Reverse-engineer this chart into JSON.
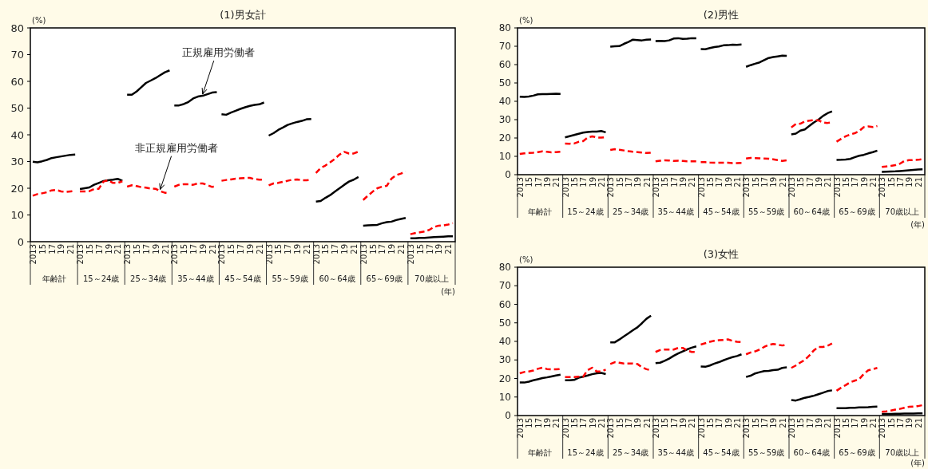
{
  "chart_data": [
    {
      "type": "line",
      "title": "(1)男女計",
      "ylabel": "(%)",
      "xlabel": "(年)",
      "ylim": [
        0,
        80
      ],
      "yticks": [
        0,
        10,
        20,
        30,
        40,
        50,
        60,
        70,
        80
      ],
      "annotations": [
        "年齢計",
        "15～24歳",
        "25～34歳",
        "35～44歳",
        "45～54歳",
        "55～59歳",
        "60～64歳",
        "65～69歳",
        "70歳以上"
      ],
      "categories": [
        "2013",
        null,
        "15",
        null,
        "17",
        null,
        "19",
        null,
        "21",
        null,
        "2013",
        null,
        "15",
        null,
        "17",
        null,
        "19",
        null,
        "21",
        null,
        "2013",
        null,
        "15",
        null,
        "17",
        null,
        "19",
        null,
        "21",
        null,
        "2013",
        null,
        "15",
        null,
        "17",
        null,
        "19",
        null,
        "21",
        null,
        "2013",
        null,
        "15",
        null,
        "17",
        null,
        "19",
        null,
        "21",
        null,
        "2013",
        null,
        "15",
        null,
        "17",
        null,
        "19",
        null,
        "21",
        null,
        "2013",
        null,
        "15",
        null,
        "17",
        null,
        "19",
        null,
        "21",
        null,
        "2013",
        null,
        "15",
        null,
        "17",
        null,
        "19",
        null,
        "21",
        null,
        "2013",
        null,
        "15",
        null,
        "17",
        null,
        "19",
        null,
        "21",
        null
      ],
      "series": [
        {
          "name": "正規雇用労働者",
          "color": "#000000",
          "line_style": "solid",
          "values": [
            29.9,
            29.7,
            30.1,
            30.6,
            31.3,
            31.6,
            31.9,
            32.2,
            32.5,
            32.6,
            19.7,
            20.0,
            20.3,
            21.3,
            22.0,
            22.7,
            23.0,
            23.2,
            23.5,
            22.8,
            55.0,
            55.0,
            56.2,
            57.8,
            59.4,
            60.3,
            61.2,
            62.3,
            63.4,
            64.1,
            51.0,
            51.0,
            51.5,
            52.3,
            53.6,
            54.3,
            54.6,
            55.2,
            55.8,
            56.0,
            47.7,
            47.5,
            48.3,
            49.0,
            49.7,
            50.3,
            50.8,
            51.2,
            51.4,
            52.1,
            39.7,
            40.6,
            41.8,
            42.7,
            43.7,
            44.3,
            44.8,
            45.2,
            45.8,
            45.9,
            15.0,
            15.2,
            16.4,
            17.4,
            18.7,
            20.0,
            21.3,
            22.5,
            23.2,
            24.2,
            6.0,
            6.1,
            6.2,
            6.3,
            6.9,
            7.3,
            7.5,
            8.1,
            8.5,
            8.9,
            1.3,
            1.3,
            1.4,
            1.4,
            1.6,
            1.7,
            1.8,
            1.9,
            2.0,
            2.0
          ]
        },
        {
          "name": "非正規雇用労働者",
          "color": "#ff0000",
          "line_style": "dashed",
          "values": [
            17.2,
            17.8,
            18.1,
            18.5,
            19.2,
            19.4,
            18.8,
            18.6,
            18.8,
            19.0,
            18.8,
            18.8,
            18.9,
            19.7,
            19.8,
            22.5,
            23.0,
            22.0,
            22.0,
            22.6,
            20.6,
            21.1,
            20.8,
            20.4,
            20.2,
            19.9,
            19.8,
            18.9,
            18.3,
            18.2,
            20.6,
            21.3,
            21.5,
            21.5,
            21.3,
            21.8,
            21.8,
            21.2,
            20.5,
            20.7,
            22.8,
            23.1,
            23.3,
            23.6,
            23.7,
            23.8,
            23.9,
            23.4,
            23.2,
            23.2,
            21.1,
            21.8,
            22.0,
            22.4,
            22.8,
            23.2,
            23.3,
            23.0,
            23.0,
            23.1,
            25.7,
            27.6,
            28.5,
            29.7,
            31.0,
            32.6,
            33.6,
            33.0,
            33.0,
            33.7,
            15.6,
            17.2,
            18.7,
            20.0,
            20.6,
            20.9,
            23.6,
            24.9,
            25.5,
            26.2,
            2.8,
            3.2,
            3.5,
            3.8,
            4.4,
            5.5,
            6.0,
            6.1,
            6.4,
            6.9
          ]
        }
      ]
    },
    {
      "type": "line",
      "title": "(2)男性",
      "ylabel": "(%)",
      "xlabel": "(年)",
      "ylim": [
        0,
        80
      ],
      "yticks": [
        0,
        10,
        20,
        30,
        40,
        50,
        60,
        70,
        80
      ],
      "annotations": [
        "年齢計",
        "15～24歳",
        "25～34歳",
        "35～44歳",
        "45～54歳",
        "55～59歳",
        "60～64歳",
        "65～69歳",
        "70歳以上"
      ],
      "categories": [
        "2013",
        null,
        "15",
        null,
        "17",
        null,
        "19",
        null,
        "21",
        null,
        "2013",
        null,
        "15",
        null,
        "17",
        null,
        "19",
        null,
        "21",
        null,
        "2013",
        null,
        "15",
        null,
        "17",
        null,
        "19",
        null,
        "21",
        null,
        "2013",
        null,
        "15",
        null,
        "17",
        null,
        "19",
        null,
        "21",
        null,
        "2013",
        null,
        "15",
        null,
        "17",
        null,
        "19",
        null,
        "21",
        null,
        "2013",
        null,
        "15",
        null,
        "17",
        null,
        "19",
        null,
        "21",
        null,
        "2013",
        null,
        "15",
        null,
        "17",
        null,
        "19",
        null,
        "21",
        null,
        "2013",
        null,
        "15",
        null,
        "17",
        null,
        "19",
        null,
        "21",
        null,
        "2013",
        null,
        "15",
        null,
        "17",
        null,
        "19",
        null,
        "21",
        null
      ],
      "series": [
        {
          "color": "#000000",
          "line_style": "solid",
          "values": [
            42.5,
            42.4,
            42.6,
            43.1,
            43.8,
            43.9,
            43.9,
            44.0,
            44.1,
            44.0,
            20.3,
            21.0,
            21.6,
            22.3,
            22.9,
            23.3,
            23.5,
            23.5,
            23.8,
            23.1,
            69.8,
            70.0,
            70.1,
            71.3,
            72.3,
            73.6,
            73.4,
            73.2,
            73.6,
            73.7,
            72.8,
            72.9,
            72.8,
            73.2,
            74.2,
            74.4,
            74.0,
            74.1,
            74.4,
            74.3,
            68.5,
            68.4,
            69.0,
            69.6,
            69.9,
            70.5,
            70.6,
            70.9,
            70.8,
            71.0,
            58.8,
            59.7,
            60.5,
            61.2,
            62.4,
            63.6,
            64.1,
            64.5,
            64.9,
            64.8,
            22.0,
            22.4,
            24.0,
            24.7,
            26.6,
            28.5,
            30.0,
            32.0,
            33.5,
            34.5,
            8.0,
            8.1,
            8.3,
            8.6,
            9.5,
            10.3,
            10.8,
            11.6,
            12.3,
            13.1,
            1.5,
            1.6,
            1.7,
            1.8,
            2.0,
            2.2,
            2.4,
            2.6,
            2.8,
            2.9
          ]
        },
        {
          "color": "#ff0000",
          "line_style": "dashed",
          "values": [
            11.3,
            11.6,
            11.8,
            12.0,
            12.3,
            12.7,
            12.5,
            12.2,
            12.3,
            12.5,
            17.0,
            16.9,
            17.0,
            17.9,
            18.3,
            20.2,
            20.9,
            20.3,
            20.2,
            20.5,
            13.5,
            13.9,
            13.6,
            13.2,
            12.8,
            12.5,
            12.3,
            12.1,
            11.8,
            12.0,
            7.3,
            7.6,
            7.8,
            7.7,
            7.5,
            7.6,
            7.5,
            7.3,
            7.3,
            7.3,
            6.8,
            6.8,
            6.6,
            6.5,
            6.5,
            6.5,
            6.5,
            6.3,
            6.3,
            6.4,
            8.8,
            9.1,
            9.0,
            8.9,
            8.8,
            8.7,
            8.4,
            7.9,
            7.5,
            7.8,
            25.8,
            27.6,
            27.8,
            29.0,
            29.5,
            29.7,
            29.6,
            28.5,
            28.2,
            28.6,
            18.0,
            19.5,
            20.9,
            21.9,
            22.6,
            23.8,
            25.9,
            26.3,
            26.0,
            26.5,
            4.2,
            4.5,
            4.8,
            5.2,
            6.0,
            7.5,
            7.9,
            8.0,
            8.1,
            8.5
          ]
        }
      ]
    },
    {
      "type": "line",
      "title": "(3)女性",
      "ylabel": "(%)",
      "xlabel": "(年)",
      "ylim": [
        0,
        80
      ],
      "yticks": [
        0,
        10,
        20,
        30,
        40,
        50,
        60,
        70,
        80
      ],
      "annotations": [
        "年齢計",
        "15～24歳",
        "25～34歳",
        "35～44歳",
        "45～54歳",
        "55～59歳",
        "60～64歳",
        "65～69歳",
        "70歳以上"
      ],
      "categories": [
        "2013",
        null,
        "15",
        null,
        "17",
        null,
        "19",
        null,
        "21",
        null,
        "2013",
        null,
        "15",
        null,
        "17",
        null,
        "19",
        null,
        "21",
        null,
        "2013",
        null,
        "15",
        null,
        "17",
        null,
        "19",
        null,
        "21",
        null,
        "2013",
        null,
        "15",
        null,
        "17",
        null,
        "19",
        null,
        "21",
        null,
        "2013",
        null,
        "15",
        null,
        "17",
        null,
        "19",
        null,
        "21",
        null,
        "2013",
        null,
        "15",
        null,
        "17",
        null,
        "19",
        null,
        "21",
        null,
        "2013",
        null,
        "15",
        null,
        "17",
        null,
        "19",
        null,
        "21",
        null,
        "2013",
        null,
        "15",
        null,
        "17",
        null,
        "19",
        null,
        "21",
        null,
        "2013",
        null,
        "15",
        null,
        "17",
        null,
        "19",
        null,
        "21",
        null
      ],
      "series": [
        {
          "color": "#000000",
          "line_style": "solid",
          "values": [
            17.8,
            17.8,
            18.3,
            19.0,
            19.6,
            20.2,
            20.6,
            21.1,
            21.6,
            22.0,
            19.0,
            19.0,
            19.2,
            20.4,
            21.0,
            21.6,
            22.3,
            22.8,
            23.0,
            22.4,
            39.5,
            39.5,
            41.0,
            42.7,
            44.3,
            46.0,
            47.6,
            49.8,
            52.2,
            53.9,
            28.3,
            28.5,
            29.5,
            30.7,
            32.2,
            33.5,
            34.6,
            35.7,
            36.6,
            37.3,
            26.4,
            26.3,
            27.0,
            28.0,
            28.8,
            29.8,
            30.7,
            31.5,
            32.1,
            33.0,
            20.8,
            21.5,
            22.7,
            23.4,
            24.0,
            24.1,
            24.5,
            24.7,
            25.7,
            26.0,
            8.4,
            8.1,
            8.8,
            9.6,
            10.1,
            10.7,
            11.5,
            12.3,
            13.2,
            13.6,
            4.0,
            4.0,
            4.0,
            4.2,
            4.2,
            4.4,
            4.4,
            4.5,
            4.7,
            4.8,
            0.9,
            0.9,
            0.9,
            1.0,
            1.0,
            1.1,
            1.1,
            1.1,
            1.2,
            1.2
          ]
        },
        {
          "color": "#ff0000",
          "line_style": "dashed",
          "values": [
            22.8,
            23.5,
            23.8,
            24.3,
            25.2,
            25.8,
            25.1,
            24.9,
            24.9,
            25.1,
            20.8,
            20.8,
            20.8,
            21.0,
            21.0,
            24.5,
            25.8,
            23.8,
            23.8,
            24.8,
            27.8,
            28.8,
            28.5,
            28.1,
            28.1,
            28.1,
            27.8,
            26.0,
            25.0,
            24.4,
            34.3,
            35.3,
            35.6,
            35.6,
            35.6,
            36.5,
            36.5,
            35.1,
            34.3,
            34.3,
            38.3,
            39.0,
            39.8,
            40.3,
            40.6,
            40.8,
            41.1,
            40.3,
            39.8,
            39.6,
            33.0,
            34.0,
            34.6,
            35.6,
            37.0,
            38.1,
            38.6,
            38.2,
            37.8,
            38.2,
            25.7,
            27.0,
            28.6,
            30.0,
            32.4,
            35.2,
            37.0,
            37.0,
            37.6,
            38.9,
            13.4,
            15.0,
            16.4,
            17.9,
            18.8,
            19.6,
            22.4,
            24.4,
            25.0,
            25.7,
            2.0,
            2.3,
            2.7,
            3.2,
            3.6,
            4.2,
            4.7,
            4.9,
            5.1,
            5.6
          ]
        }
      ]
    }
  ]
}
